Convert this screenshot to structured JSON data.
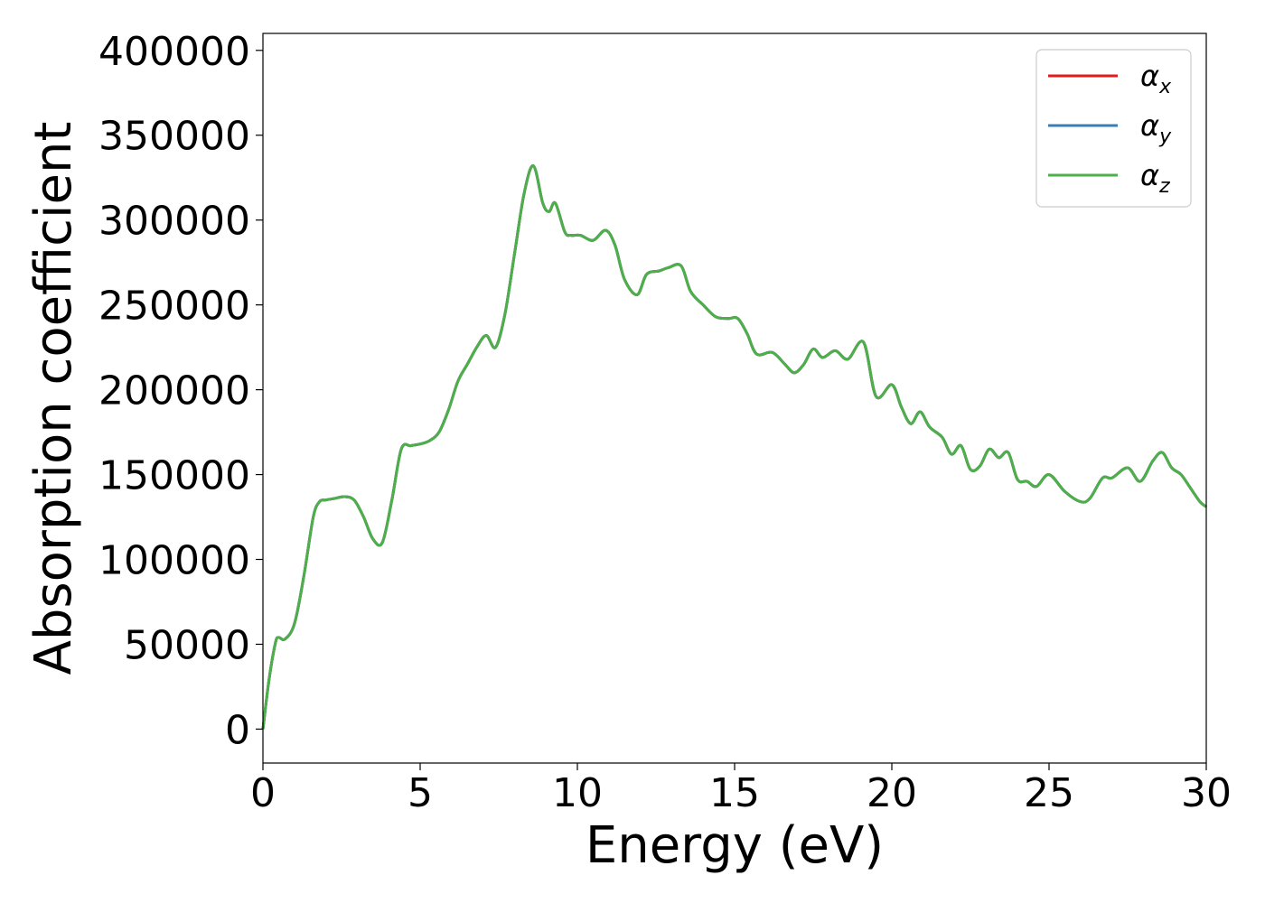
{
  "chart_data": {
    "type": "line",
    "title": "",
    "xlabel": "Energy (eV)",
    "ylabel": "Absorption coefficient",
    "xlim": [
      0,
      30
    ],
    "ylim": [
      -20000,
      410000
    ],
    "xticks": [
      0,
      5,
      10,
      15,
      20,
      25,
      30
    ],
    "xtick_labels": [
      "0",
      "5",
      "10",
      "15",
      "20",
      "25",
      "30"
    ],
    "yticks": [
      0,
      50000,
      100000,
      150000,
      200000,
      250000,
      300000,
      350000,
      400000
    ],
    "ytick_labels": [
      "0",
      "50000",
      "100000",
      "150000",
      "200000",
      "250000",
      "300000",
      "350000",
      "400000"
    ],
    "grid": false,
    "legend_position": "top-right",
    "x": [
      0.0,
      0.2,
      0.4,
      0.5,
      0.7,
      1.0,
      1.3,
      1.6,
      1.8,
      2.0,
      2.3,
      2.6,
      2.9,
      3.2,
      3.5,
      3.8,
      4.1,
      4.4,
      4.7,
      5.0,
      5.3,
      5.6,
      5.9,
      6.2,
      6.5,
      6.8,
      7.1,
      7.4,
      7.7,
      8.0,
      8.3,
      8.6,
      8.9,
      9.1,
      9.3,
      9.6,
      9.8,
      10.1,
      10.5,
      10.9,
      11.2,
      11.5,
      11.9,
      12.2,
      12.6,
      12.9,
      13.3,
      13.6,
      14.0,
      14.4,
      14.8,
      15.1,
      15.4,
      15.7,
      16.2,
      16.6,
      16.9,
      17.2,
      17.5,
      17.8,
      18.2,
      18.6,
      19.1,
      19.5,
      20.0,
      20.3,
      20.6,
      20.9,
      21.2,
      21.6,
      21.9,
      22.2,
      22.5,
      22.8,
      23.1,
      23.4,
      23.7,
      24.0,
      24.3,
      24.6,
      25.0,
      25.5,
      26.0,
      26.3,
      26.7,
      27.0,
      27.5,
      27.9,
      28.3,
      28.6,
      28.9,
      29.2,
      29.5,
      29.8,
      30.0
    ],
    "series": [
      {
        "name": "x",
        "color": "#e41a1c"
      },
      {
        "name": "y",
        "color": "#377eb8"
      },
      {
        "name": "z",
        "color": "#4daf4a"
      }
    ],
    "values": [
      0,
      30000,
      51000,
      54000,
      53000,
      62000,
      90000,
      125000,
      134000,
      135000,
      136000,
      137000,
      135000,
      125000,
      112000,
      110000,
      135000,
      165000,
      167000,
      168000,
      170000,
      175000,
      188000,
      205000,
      215000,
      225000,
      232000,
      225000,
      245000,
      280000,
      315000,
      332000,
      310000,
      305000,
      310000,
      293000,
      291000,
      291000,
      288000,
      294000,
      285000,
      265000,
      256000,
      268000,
      270000,
      272000,
      273000,
      258000,
      250000,
      243000,
      242000,
      242000,
      233000,
      221000,
      222000,
      215000,
      210000,
      215000,
      224000,
      219000,
      223000,
      218000,
      228000,
      196000,
      203000,
      190000,
      180000,
      187000,
      178000,
      172000,
      162000,
      167000,
      153000,
      155000,
      165000,
      160000,
      163000,
      147000,
      146000,
      143000,
      150000,
      140000,
      134000,
      136000,
      148000,
      148000,
      154000,
      146000,
      158000,
      163000,
      154000,
      150000,
      142000,
      134000,
      131000
    ]
  },
  "legend": {
    "entries": [
      {
        "symbol": "α",
        "sub": "x"
      },
      {
        "symbol": "α",
        "sub": "y"
      },
      {
        "symbol": "α",
        "sub": "z"
      }
    ]
  }
}
